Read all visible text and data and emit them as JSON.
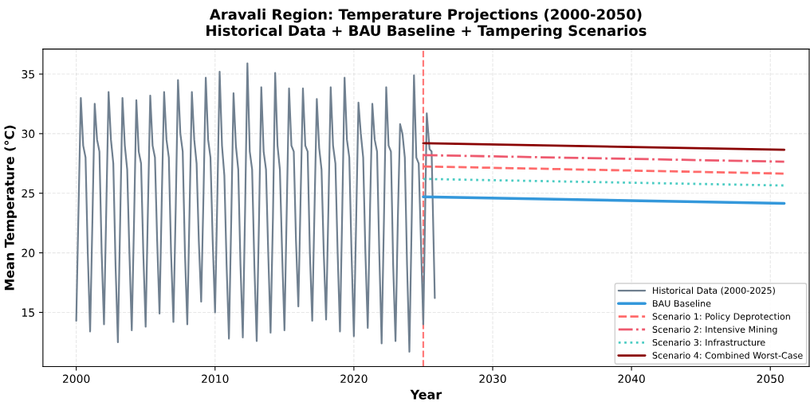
{
  "chart_data": {
    "type": "line",
    "title": "Aravali Region: Temperature Projections (2000-2050)\nHistorical Data + BAU Baseline + Tampering Scenarios",
    "xlabel": "Year",
    "ylabel": "Mean Temperature (°C)",
    "xlim": [
      1997.6,
      2052.8
    ],
    "ylim": [
      10.45,
      37.1
    ],
    "xticks": [
      2000,
      2010,
      2020,
      2030,
      2040,
      2050
    ],
    "yticks": [
      15,
      20,
      25,
      30,
      35
    ],
    "grid": true,
    "legend": "bottom right",
    "ref_lines": [
      {
        "axis": "x",
        "value": 2025,
        "label": null,
        "color": "#ff6b6b",
        "line_style": "dashed"
      }
    ],
    "series": [
      {
        "name": "Historical Data (2000-2025)",
        "color": "#708090",
        "line_style": "solid",
        "x": [
          2000,
          2000.17,
          2000.33,
          2000.5,
          2000.67,
          2000.83,
          2001,
          2001.17,
          2001.33,
          2001.5,
          2001.67,
          2001.83,
          2002,
          2002.17,
          2002.33,
          2002.5,
          2002.67,
          2002.83,
          2003,
          2003.17,
          2003.33,
          2003.5,
          2003.67,
          2003.83,
          2004,
          2004.17,
          2004.33,
          2004.5,
          2004.67,
          2004.83,
          2005,
          2005.17,
          2005.33,
          2005.5,
          2005.67,
          2005.83,
          2006,
          2006.17,
          2006.33,
          2006.5,
          2006.67,
          2006.83,
          2007,
          2007.17,
          2007.33,
          2007.5,
          2007.67,
          2007.83,
          2008,
          2008.17,
          2008.33,
          2008.5,
          2008.67,
          2008.83,
          2009,
          2009.17,
          2009.33,
          2009.5,
          2009.67,
          2009.83,
          2010,
          2010.17,
          2010.33,
          2010.5,
          2010.67,
          2010.83,
          2011,
          2011.17,
          2011.33,
          2011.5,
          2011.67,
          2011.83,
          2012,
          2012.17,
          2012.33,
          2012.5,
          2012.67,
          2012.83,
          2013,
          2013.17,
          2013.33,
          2013.5,
          2013.67,
          2013.83,
          2014,
          2014.17,
          2014.33,
          2014.5,
          2014.67,
          2014.83,
          2015,
          2015.17,
          2015.33,
          2015.5,
          2015.67,
          2015.83,
          2016,
          2016.17,
          2016.33,
          2016.5,
          2016.67,
          2016.83,
          2017,
          2017.17,
          2017.33,
          2017.5,
          2017.67,
          2017.83,
          2018,
          2018.17,
          2018.33,
          2018.5,
          2018.67,
          2018.83,
          2019,
          2019.17,
          2019.33,
          2019.5,
          2019.67,
          2019.83,
          2020,
          2020.17,
          2020.33,
          2020.5,
          2020.67,
          2020.83,
          2021,
          2021.17,
          2021.33,
          2021.5,
          2021.67,
          2021.83,
          2022,
          2022.17,
          2022.33,
          2022.5,
          2022.67,
          2022.83,
          2023,
          2023.17,
          2023.33,
          2023.5,
          2023.67,
          2023.83,
          2024,
          2024.17,
          2024.33,
          2024.5,
          2024.67,
          2024.83,
          2025,
          2025.25,
          2025.45,
          2025.6,
          2025.83
        ],
        "values": [
          14.3,
          24,
          33.0,
          29.0,
          28.0,
          20,
          13.4,
          23,
          32.5,
          29.5,
          28.5,
          20,
          14.0,
          24,
          33.5,
          29.5,
          27.5,
          19,
          12.5,
          23,
          33.0,
          29.0,
          27.0,
          20,
          13.5,
          23,
          32.8,
          28.5,
          27.5,
          20,
          13.8,
          24,
          33.2,
          29.0,
          28.0,
          21,
          14.9,
          25,
          33.5,
          29.5,
          28.0,
          20,
          14.2,
          24,
          34.5,
          30.0,
          28.5,
          20,
          14.0,
          24,
          33.5,
          29.5,
          27.5,
          21,
          15.9,
          25,
          34.7,
          29.5,
          28.0,
          21,
          15.0,
          25,
          35.2,
          29.0,
          26.5,
          19,
          12.8,
          23,
          33.4,
          29.0,
          27.0,
          19,
          12.9,
          24,
          35.9,
          28.5,
          27.0,
          19,
          12.6,
          23,
          33.9,
          28.5,
          27.0,
          20,
          13.3,
          23,
          35.1,
          29.0,
          27.0,
          20,
          13.5,
          24,
          33.8,
          29.0,
          28.5,
          21,
          15.5,
          25,
          33.8,
          29.0,
          28.5,
          20,
          14.3,
          24,
          32.9,
          28.8,
          27.0,
          20,
          14.4,
          24,
          33.9,
          29.0,
          27.5,
          20,
          13.4,
          24,
          34.7,
          29.5,
          28.0,
          20,
          13.0,
          23,
          32.6,
          30.0,
          28.0,
          20,
          13.7,
          24,
          32.5,
          29.5,
          28.5,
          20,
          12.4,
          23,
          33.9,
          29.0,
          28.5,
          19,
          12.6,
          23,
          30.8,
          30.0,
          28.0,
          19,
          11.7,
          23,
          34.9,
          28.0,
          27.5,
          21,
          14.0,
          31.7,
          28.7,
          28.5,
          16.2
        ]
      },
      {
        "name": "BAU Baseline",
        "color": "#3498db",
        "line_style": "solid",
        "x": [
          2025,
          2051
        ],
        "values": [
          24.7,
          24.15
        ]
      },
      {
        "name": "Scenario 1: Policy Deprotection",
        "color": "#ff6b6b",
        "line_style": "dashed",
        "x": [
          2025,
          2051
        ],
        "values": [
          27.25,
          26.65
        ]
      },
      {
        "name": "Scenario 2: Intensive Mining",
        "color": "#ee5a6f",
        "line_style": "dashdot",
        "x": [
          2025,
          2051
        ],
        "values": [
          28.2,
          27.65
        ]
      },
      {
        "name": "Scenario 3: Infrastructure",
        "color": "#4ecdc4",
        "line_style": "dotted",
        "x": [
          2025,
          2051
        ],
        "values": [
          26.2,
          25.65
        ]
      },
      {
        "name": "Scenario 4: Combined Worst-Case",
        "color": "#8b0000",
        "line_style": "solid",
        "x": [
          2025,
          2051
        ],
        "values": [
          29.2,
          28.65
        ]
      }
    ]
  }
}
